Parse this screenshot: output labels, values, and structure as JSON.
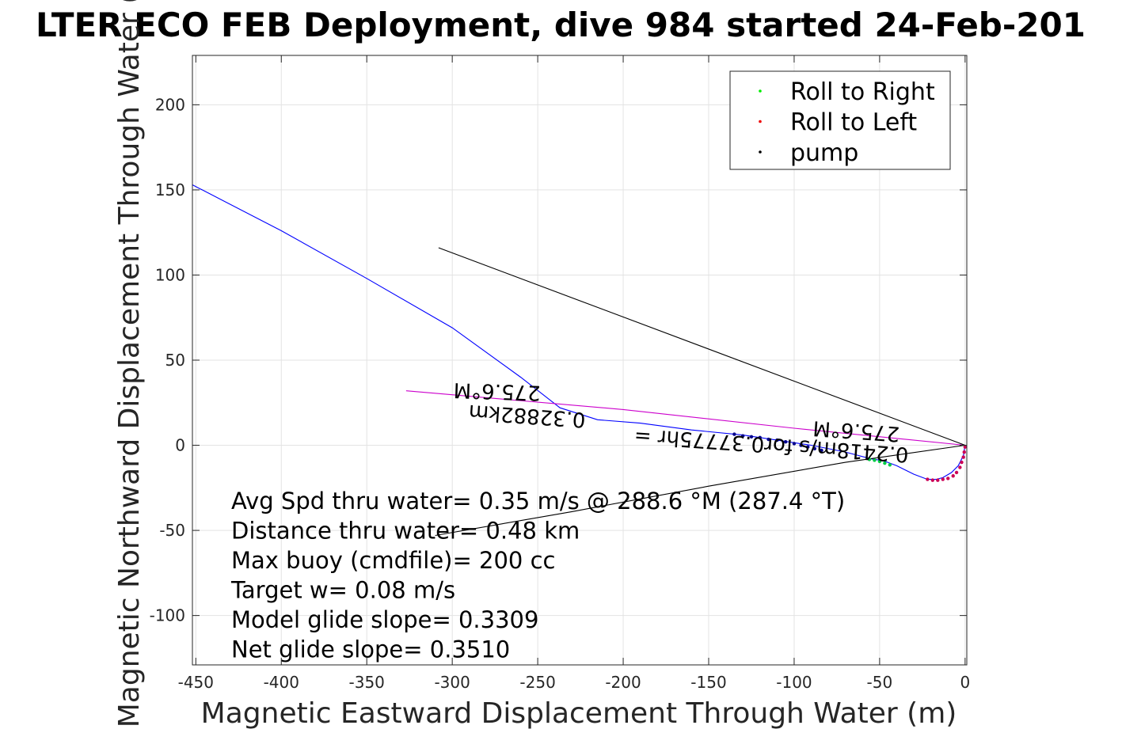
{
  "chart_data": {
    "type": "line",
    "title": "LTER ECO FEB Deployment, dive 984 started 24-Feb-201",
    "xlabel": "Magnetic Eastward Displacement Through Water (m)",
    "ylabel": "Magnetic Northward Displacement Through Water (",
    "xlim": [
      -452,
      1
    ],
    "ylim": [
      -129,
      229
    ],
    "xticks": [
      -450,
      -400,
      -350,
      -300,
      -250,
      -200,
      -150,
      -100,
      -50,
      0
    ],
    "xtick_labels": [
      "-450",
      "-400",
      "-350",
      "-300",
      "-250",
      "-200",
      "-150",
      "-100",
      "-50",
      "0"
    ],
    "yticks": [
      -100,
      -50,
      0,
      50,
      100,
      150,
      200
    ],
    "ytick_labels": [
      "-100",
      "-50",
      "0",
      "50",
      "100",
      "150",
      "200"
    ],
    "grid": true,
    "legend": {
      "placement": "top-right",
      "entries": [
        {
          "label": "Roll to Right",
          "color": "#00ee00"
        },
        {
          "label": "Roll to Left",
          "color": "#ee0000"
        },
        {
          "label": "pump",
          "color": "#000000"
        }
      ]
    },
    "series": [
      {
        "color": "#0000ff",
        "x": [
          0,
          -1,
          -4,
          -8,
          -13,
          -17,
          -22,
          -30,
          -40,
          -48,
          -55,
          -70,
          -90,
          -110,
          -130,
          -160,
          -190,
          -215,
          -237,
          -260,
          -300,
          -350,
          -400,
          -452
        ],
        "y": [
          0,
          -6,
          -12,
          -16,
          -19,
          -20,
          -20,
          -17,
          -12,
          -9,
          -8,
          -4,
          0,
          3,
          6,
          9,
          13,
          15,
          22,
          40,
          69,
          98,
          126,
          153
        ]
      },
      {
        "color": "#cc00cc",
        "x": [
          0,
          -100,
          -200,
          -327
        ],
        "y": [
          0,
          10,
          21,
          32
        ]
      },
      {
        "color": "#000000",
        "x": [
          0,
          -308
        ],
        "y": [
          0,
          116
        ]
      },
      {
        "color": "#000000",
        "x": [
          0,
          -70,
          -150,
          -230,
          -310
        ],
        "y": [
          0,
          -10,
          -24,
          -39,
          -53
        ]
      }
    ],
    "roll_points": [
      {
        "kind": "left",
        "color": "#cc0055",
        "x": [
          0,
          -0.5,
          -1,
          -2,
          -3,
          -5,
          -7,
          -10,
          -13,
          -16,
          -19,
          -22
        ],
        "y": [
          -1,
          -4,
          -7,
          -10,
          -13,
          -16,
          -18,
          -19.5,
          -20,
          -20.5,
          -20.5,
          -20
        ]
      },
      {
        "kind": "right",
        "color": "#00cc44",
        "x": [
          -44,
          -47,
          -50,
          -53,
          -56
        ],
        "y": [
          -11.5,
          -10.5,
          -9.5,
          -8.8,
          -8.3
        ]
      },
      {
        "kind": "pump",
        "color": "#00008b",
        "x": [
          -84,
          -88,
          -92,
          -96,
          -100,
          -105,
          -110,
          -115,
          -120,
          -125,
          -130,
          -135
        ],
        "y": [
          -3,
          -2,
          -1,
          0,
          1,
          2,
          3,
          3.5,
          4.5,
          5,
          5.5,
          6.5
        ]
      }
    ],
    "annotations": {
      "heading_far": "275.6°M",
      "heading_near": "275.6°M",
      "distance_far": "0.32882km",
      "speed_near": "0.2418m/s for0.37775hr =",
      "stats": [
        "Avg Spd thru water=  0.35 m/s @ 288.6 °M (287.4 °T)",
        "Distance thru water=  0.48 km",
        "Max buoy (cmdfile)= 200 cc",
        "Target w= 0.08 m/s",
        "Model glide slope= 0.3309",
        "Net glide slope= 0.3510"
      ]
    }
  }
}
